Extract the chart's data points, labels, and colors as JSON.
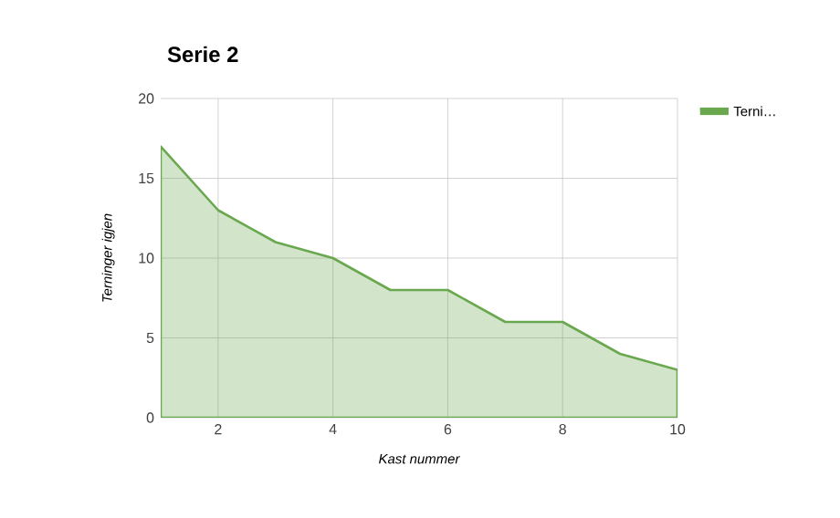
{
  "chart_data": {
    "type": "area",
    "title": "Serie 2",
    "xlabel": "Kast nummer",
    "ylabel": "Terninger igjen",
    "x": [
      1,
      2,
      3,
      4,
      5,
      6,
      7,
      8,
      9,
      10
    ],
    "series": [
      {
        "name": "Terni…",
        "color": "#6aa84f",
        "values": [
          17,
          13,
          11,
          10,
          8,
          8,
          6,
          6,
          4,
          3
        ]
      }
    ],
    "xlim": [
      1,
      10
    ],
    "xticks": [
      2,
      4,
      6,
      8,
      10
    ],
    "ylim": [
      0,
      20
    ],
    "yticks": [
      0,
      5,
      10,
      15,
      20
    ],
    "grid": true,
    "legend": "top right"
  }
}
